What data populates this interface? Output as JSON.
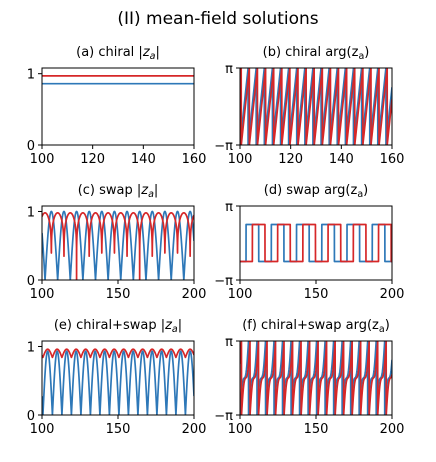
{
  "figure": {
    "title": "(II) mean-field solutions"
  },
  "colors": {
    "series_a": "#2e78b8",
    "series_b": "#d62728"
  },
  "chart_data": [
    {
      "type": "line",
      "title": "(a) chiral |z_a|",
      "title_parts": [
        "(a) chiral |",
        "z",
        "a",
        "|"
      ],
      "title_style": "math",
      "xlim": [
        100,
        160
      ],
      "ylim": [
        0,
        1.08
      ],
      "xticks": [
        100,
        120,
        140,
        160
      ],
      "xtick_labels": [
        "100",
        "120",
        "140",
        "160"
      ],
      "yticks": [
        0,
        1
      ],
      "ytick_labels": [
        "0",
        "1"
      ],
      "series": [
        {
          "kind": "const",
          "value": 0.86,
          "color": "#2e78b8"
        },
        {
          "kind": "const",
          "value": 0.97,
          "color": "#d62728"
        }
      ]
    },
    {
      "type": "line",
      "title": "(b) chiral arg(z_a)",
      "title_parts": [
        "(b) chiral arg(",
        "z",
        "a",
        ")"
      ],
      "title_style": "text",
      "xlim": [
        100,
        160
      ],
      "ylim": [
        -3.1416,
        3.1416
      ],
      "xticks": [
        100,
        120,
        140,
        160
      ],
      "xtick_labels": [
        "100",
        "120",
        "140",
        "160"
      ],
      "yticks": [
        -3.1416,
        3.1416
      ],
      "ytick_labels": [
        "−π",
        "π"
      ],
      "series": [
        {
          "kind": "saw",
          "period": 3.2,
          "phase": 0.0,
          "color": "#2e78b8"
        },
        {
          "kind": "saw",
          "period": 3.2,
          "phase": 0.5,
          "color": "#d62728"
        }
      ]
    },
    {
      "type": "line",
      "title": "(c) swap |z_a|",
      "title_parts": [
        "(c) swap |",
        "z",
        "a",
        "|"
      ],
      "title_style": "math",
      "xlim": [
        100,
        200
      ],
      "ylim": [
        0,
        1.08
      ],
      "xticks": [
        100,
        150,
        200
      ],
      "xtick_labels": [
        "100",
        "150",
        "200"
      ],
      "yticks": [
        0,
        1
      ],
      "ytick_labels": [
        "0",
        "1"
      ],
      "series": [
        {
          "kind": "absdip",
          "period": 8.3,
          "phase": 102,
          "amp": 1.0,
          "color": "#2e78b8"
        },
        {
          "kind": "plateau",
          "period": 8.3,
          "phase": 106.15,
          "amp": 0.98,
          "color": "#d62728"
        }
      ]
    },
    {
      "type": "line",
      "title": "(d) swap arg(z_a)",
      "title_parts": [
        "(d) swap arg(",
        "z",
        "a",
        ")"
      ],
      "title_style": "text",
      "xlim": [
        100,
        200
      ],
      "ylim": [
        -3.1416,
        3.1416
      ],
      "xticks": [
        100,
        150,
        200
      ],
      "xtick_labels": [
        "100",
        "150",
        "200"
      ],
      "yticks": [
        -3.1416,
        3.1416
      ],
      "ytick_labels": [
        "−π",
        "π"
      ],
      "series": [
        {
          "kind": "square",
          "period": 16.6,
          "phase": 104,
          "high": 1.57,
          "low": -1.57,
          "color": "#2e78b8"
        },
        {
          "kind": "square",
          "period": 16.6,
          "phase": 108.15,
          "high": 1.57,
          "low": -1.57,
          "color": "#d62728"
        }
      ]
    },
    {
      "type": "line",
      "title": "(e) chiral+swap |z_a|",
      "title_parts": [
        "(e) chiral+swap |",
        "z",
        "a",
        "|"
      ],
      "title_style": "math",
      "xlim": [
        100,
        200
      ],
      "ylim": [
        0,
        1.08
      ],
      "xticks": [
        100,
        150,
        200
      ],
      "xtick_labels": [
        "100",
        "150",
        "200"
      ],
      "yticks": [
        0,
        1
      ],
      "ytick_labels": [
        "0",
        "1"
      ],
      "series": [
        {
          "kind": "absdip",
          "period": 6.25,
          "phase": 100.6,
          "amp": 0.93,
          "color": "#2e78b8"
        },
        {
          "kind": "ripple",
          "period": 6.25,
          "phase": 100.6,
          "base": 0.84,
          "amp": 0.12,
          "color": "#d62728"
        }
      ]
    },
    {
      "type": "line",
      "title": "(f) chiral+swap arg(z_a)",
      "title_parts": [
        "(f) chiral+swap arg(",
        "z",
        "a",
        ")"
      ],
      "title_style": "text",
      "xlim": [
        100,
        200
      ],
      "ylim": [
        -3.1416,
        3.1416
      ],
      "xticks": [
        100,
        150,
        200
      ],
      "xtick_labels": [
        "100",
        "150",
        "200"
      ],
      "yticks": [
        -3.1416,
        3.1416
      ],
      "ytick_labels": [
        "−π",
        "π"
      ],
      "series": [
        {
          "kind": "wobble",
          "period": 5.6,
          "phase": 100.0,
          "color": "#2e78b8"
        },
        {
          "kind": "wobble",
          "period": 5.6,
          "phase": 101.0,
          "color": "#d62728"
        }
      ]
    }
  ]
}
